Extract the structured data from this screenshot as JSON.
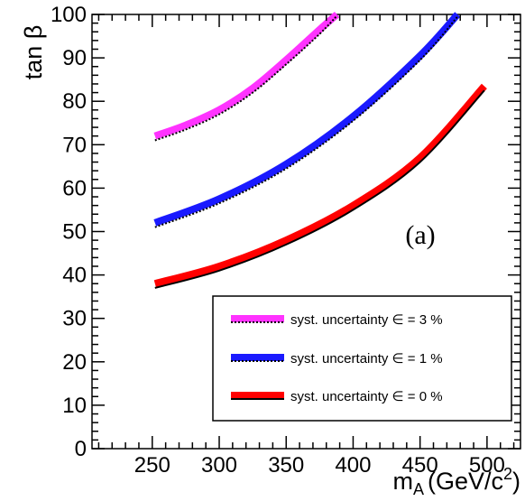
{
  "chart_data": {
    "type": "line",
    "xlabel": "m",
    "xlabel_sub": "A",
    "xlabel_units": "(GeV/c",
    "xlabel_sup": "2",
    "xlabel_close": ")",
    "ylabel": "tan β",
    "xlim": [
      205,
      525
    ],
    "ylim": [
      0,
      100
    ],
    "x_ticks": [
      250,
      300,
      350,
      400,
      450,
      500
    ],
    "y_ticks": [
      0,
      10,
      20,
      30,
      40,
      50,
      60,
      70,
      80,
      90,
      100
    ],
    "annotation": "(a)",
    "legend_position": "bottom-right",
    "grid": false,
    "series": [
      {
        "name": "syst. uncertainty ∈ = 3 %",
        "color": "#ff33ff",
        "x": [
          252,
          275,
          300,
          325,
          350,
          375,
          388
        ],
        "y": [
          72,
          74.5,
          78,
          83,
          89.5,
          96.5,
          100
        ],
        "dotted_y": [
          71,
          73.5,
          77,
          82,
          88.5,
          95.5,
          99.7
        ]
      },
      {
        "name": "syst. uncertainty ∈ = 1 %",
        "color": "#1a1aff",
        "x": [
          252,
          300,
          350,
          400,
          450,
          478
        ],
        "y": [
          52,
          57.5,
          65.5,
          76.5,
          90.5,
          100
        ],
        "dotted_y": [
          51,
          56.5,
          64.5,
          75.5,
          89.5,
          99.5
        ]
      },
      {
        "name": "syst. uncertainty ∈ = 0 %",
        "color": "#ff0000",
        "x": [
          252,
          300,
          350,
          400,
          450,
          498
        ],
        "y": [
          38,
          42,
          48,
          56,
          67,
          83.5
        ],
        "dotted_y": [
          37,
          41,
          47,
          55,
          66,
          82.5
        ]
      }
    ]
  }
}
